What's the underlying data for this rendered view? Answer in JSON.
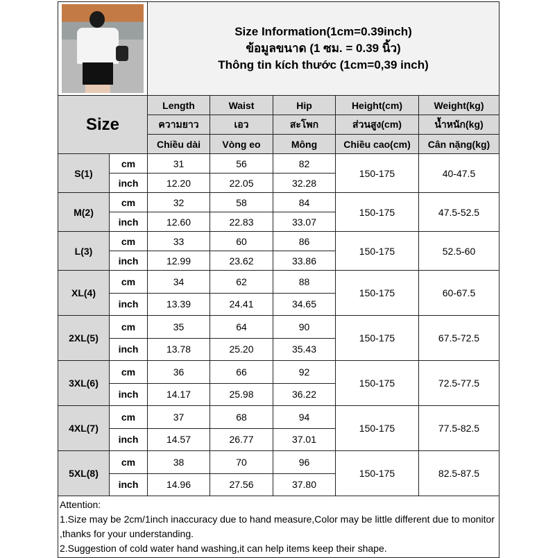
{
  "title_lines": [
    "Size Information(1cm=0.39inch)",
    "ข้อมูลขนาด (1 ซม. = 0.39 นิ้ว)",
    "Thông tin kích thước (1cm=0,39 inch)"
  ],
  "size_label": "Size",
  "headers": [
    [
      "Length",
      "Waist",
      "Hip",
      "Height(cm)",
      "Weight(kg)"
    ],
    [
      "ความยาว",
      "เอว",
      "สะโพก",
      "ส่วนสูง(cm)",
      "น้ำหนัก(kg)"
    ],
    [
      "Chiều dài",
      "Vòng eo",
      "Mông",
      "Chiều cao(cm)",
      "Cân nặng(kg)"
    ]
  ],
  "units": [
    "cm",
    "inch"
  ],
  "rows": [
    {
      "size": "S(1)",
      "cm": [
        "31",
        "56",
        "82"
      ],
      "inch": [
        "12.20",
        "22.05",
        "32.28"
      ],
      "height": "150-175",
      "weight": "40-47.5"
    },
    {
      "size": "M(2)",
      "cm": [
        "32",
        "58",
        "84"
      ],
      "inch": [
        "12.60",
        "22.83",
        "33.07"
      ],
      "height": "150-175",
      "weight": "47.5-52.5"
    },
    {
      "size": "L(3)",
      "cm": [
        "33",
        "60",
        "86"
      ],
      "inch": [
        "12.99",
        "23.62",
        "33.86"
      ],
      "height": "150-175",
      "weight": "52.5-60"
    },
    {
      "size": "XL(4)",
      "cm": [
        "34",
        "62",
        "88"
      ],
      "inch": [
        "13.39",
        "24.41",
        "34.65"
      ],
      "height": "150-175",
      "weight": "60-67.5"
    },
    {
      "size": "2XL(5)",
      "cm": [
        "35",
        "64",
        "90"
      ],
      "inch": [
        "13.78",
        "25.20",
        "35.43"
      ],
      "height": "150-175",
      "weight": "67.5-72.5"
    },
    {
      "size": "3XL(6)",
      "cm": [
        "36",
        "66",
        "92"
      ],
      "inch": [
        "14.17",
        "25.98",
        "36.22"
      ],
      "height": "150-175",
      "weight": "72.5-77.5"
    },
    {
      "size": "4XL(7)",
      "cm": [
        "37",
        "68",
        "94"
      ],
      "inch": [
        "14.57",
        "26.77",
        "37.01"
      ],
      "height": "150-175",
      "weight": "77.5-82.5"
    },
    {
      "size": "5XL(8)",
      "cm": [
        "38",
        "70",
        "96"
      ],
      "inch": [
        "14.96",
        "27.56",
        "37.80"
      ],
      "height": "150-175",
      "weight": "82.5-87.5"
    }
  ],
  "attention": [
    "Attention:",
    "1.Size may be 2cm/1inch inaccuracy due to hand measure,Color may be little different due to monitor ,thanks for your understanding.",
    "2.Suggestion of cold water hand washing,it can help items keep their shape."
  ]
}
